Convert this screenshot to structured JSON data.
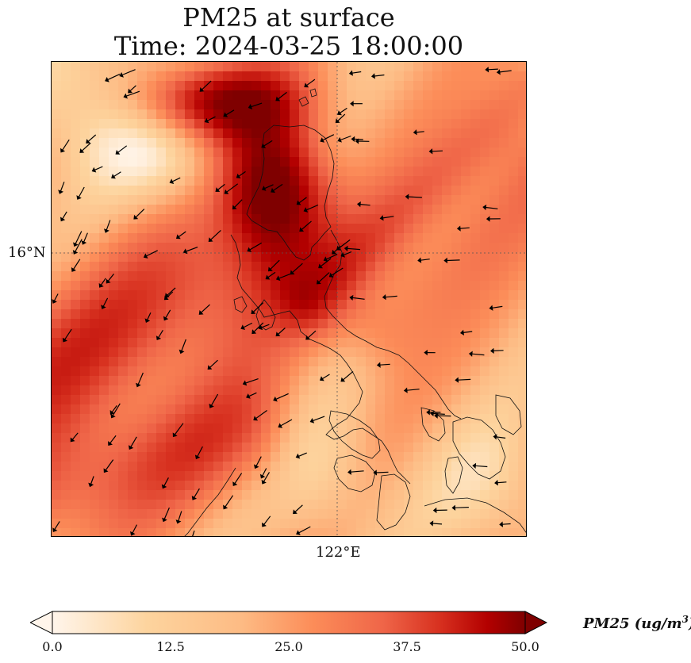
{
  "title": {
    "line1": "PM25 at surface",
    "line2": "Time: 2024-03-25 18:00:00"
  },
  "map": {
    "lat_label": "16°N",
    "lon_label": "122°E",
    "colormap": [
      "#fff5eb",
      "#fdd49e",
      "#fdbb84",
      "#fc8d59",
      "#ef6548",
      "#d7301f",
      "#b30000",
      "#7f0000"
    ],
    "field_range": [
      0,
      50
    ]
  },
  "colorbar": {
    "ticks": [
      "0.0",
      "12.5",
      "25.0",
      "37.5",
      "50.0"
    ],
    "label_main": "PM25 (ug/m",
    "label_sup": "3",
    "label_end": ")"
  }
}
